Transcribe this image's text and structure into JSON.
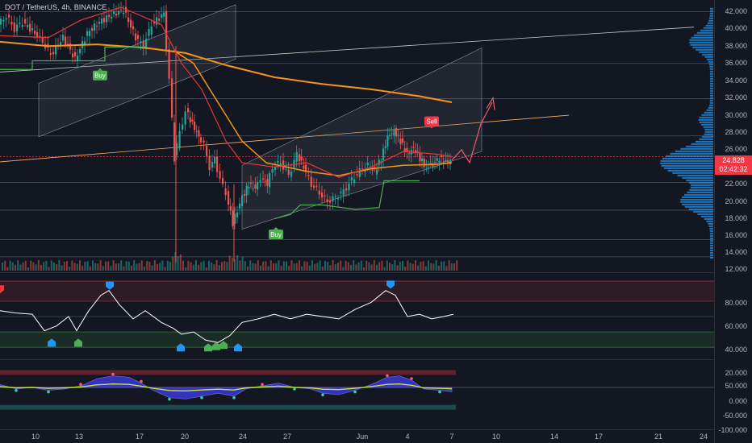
{
  "header": {
    "title": "DOT / TetherUS, 4h, BINANCE"
  },
  "colors": {
    "background": "#131722",
    "up": "#26a69a",
    "down": "#ef5350",
    "ma_orange": "#f7931a",
    "ma_red": "#e53935",
    "buy": "#4caf50",
    "sell": "#f23645",
    "volume_profile": "#2196f3",
    "rsi_line": "#ffffff",
    "channel": "#5d606b"
  },
  "price_axis": {
    "labels": [
      "42.000",
      "40.000",
      "38.000",
      "36.000",
      "34.000",
      "32.000",
      "30.000",
      "28.000",
      "26.000",
      "22.000",
      "20.000",
      "18.000",
      "16.000",
      "14.000",
      "12.000"
    ]
  },
  "current_price": {
    "value": "24.828",
    "countdown": "02:42:32"
  },
  "rsi_axis": {
    "labels": [
      "80.000",
      "60.000",
      "40.000",
      "20.000"
    ]
  },
  "osc_axis": {
    "labels": [
      "50.000",
      "0.000",
      "-50.000",
      "-100.000"
    ]
  },
  "time_axis": {
    "labels": [
      "10",
      "13",
      "17",
      "20",
      "24",
      "27",
      "Jun",
      "4",
      "7",
      "10",
      "14",
      "17",
      "21",
      "24"
    ]
  },
  "signals": {
    "buy_label": "Buy",
    "sell_label": "Sell"
  },
  "chart_data": {
    "type": "candlestick",
    "symbol": "DOT / TetherUS",
    "interval": "4h",
    "exchange": "BINANCE",
    "ylim": [
      12,
      43
    ],
    "last_price": 24.828,
    "x_ticks": [
      "10",
      "13",
      "17",
      "20",
      "24",
      "27",
      "Jun",
      "4",
      "7",
      "10",
      "14",
      "17",
      "21",
      "24"
    ],
    "price_path": [
      [
        0,
        40.5
      ],
      [
        10,
        41.5
      ],
      [
        20,
        40.0
      ],
      [
        30,
        40.8
      ],
      [
        45,
        39.5
      ],
      [
        55,
        38.5
      ],
      [
        65,
        37.0
      ],
      [
        80,
        39.0
      ],
      [
        95,
        36.5
      ],
      [
        110,
        39.5
      ],
      [
        125,
        40.8
      ],
      [
        140,
        41.6
      ],
      [
        155,
        42.2
      ],
      [
        170,
        39.0
      ],
      [
        180,
        38.0
      ],
      [
        190,
        40.5
      ],
      [
        205,
        41.8
      ],
      [
        212,
        34.0
      ],
      [
        218,
        25.0
      ],
      [
        225,
        28.0
      ],
      [
        232,
        30.5
      ],
      [
        240,
        29.0
      ],
      [
        248,
        27.5
      ],
      [
        255,
        26.5
      ],
      [
        262,
        24.0
      ],
      [
        268,
        25.0
      ],
      [
        275,
        22.5
      ],
      [
        282,
        21.0
      ],
      [
        290,
        17.5
      ],
      [
        296,
        19.0
      ],
      [
        302,
        20.5
      ],
      [
        310,
        22.0
      ],
      [
        318,
        21.5
      ],
      [
        325,
        22.8
      ],
      [
        333,
        22.0
      ],
      [
        340,
        24.0
      ],
      [
        350,
        24.5
      ],
      [
        360,
        23.0
      ],
      [
        370,
        25.5
      ],
      [
        378,
        24.0
      ],
      [
        388,
        22.0
      ],
      [
        398,
        21.0
      ],
      [
        408,
        20.0
      ],
      [
        418,
        20.5
      ],
      [
        428,
        21.2
      ],
      [
        438,
        22.5
      ],
      [
        448,
        23.5
      ],
      [
        458,
        24.2
      ],
      [
        466,
        23.5
      ],
      [
        474,
        25.0
      ],
      [
        482,
        27.5
      ],
      [
        490,
        28.2
      ],
      [
        498,
        27.0
      ],
      [
        506,
        25.5
      ],
      [
        514,
        26.2
      ],
      [
        522,
        25.0
      ],
      [
        530,
        24.0
      ],
      [
        538,
        24.4
      ],
      [
        546,
        25.0
      ],
      [
        554,
        24.5
      ],
      [
        560,
        24.8
      ]
    ],
    "ma_slow_path": [
      [
        0,
        38.5
      ],
      [
        60,
        38.0
      ],
      [
        120,
        38.2
      ],
      [
        180,
        37.8
      ],
      [
        230,
        37.2
      ],
      [
        280,
        35.8
      ],
      [
        340,
        34.4
      ],
      [
        400,
        33.6
      ],
      [
        460,
        33.0
      ],
      [
        520,
        32.2
      ],
      [
        560,
        31.5
      ]
    ],
    "ma_mid_path": [
      [
        215,
        37.5
      ],
      [
        240,
        36.0
      ],
      [
        260,
        33.0
      ],
      [
        280,
        30.0
      ],
      [
        300,
        27.0
      ],
      [
        330,
        24.5
      ],
      [
        380,
        23.5
      ],
      [
        420,
        23.0
      ],
      [
        460,
        23.8
      ],
      [
        500,
        24.2
      ],
      [
        540,
        24.3
      ],
      [
        560,
        24.5
      ]
    ],
    "projection_path": [
      [
        560,
        24.8
      ],
      [
        572,
        26.0
      ],
      [
        582,
        24.5
      ],
      [
        596,
        29.0
      ],
      [
        610,
        31.5
      ]
    ],
    "signals": [
      {
        "type": "Buy",
        "x_time": "14",
        "price": 35.5
      },
      {
        "type": "Buy",
        "x_time": "26",
        "price": 16.2
      },
      {
        "type": "Sell",
        "x_time": "4",
        "price": 28.6
      }
    ],
    "rsi": {
      "overbought": 75,
      "oversold": 35,
      "path": [
        [
          0,
          55
        ],
        [
          20,
          53
        ],
        [
          40,
          52
        ],
        [
          55,
          38
        ],
        [
          70,
          42
        ],
        [
          85,
          50
        ],
        [
          95,
          38
        ],
        [
          110,
          55
        ],
        [
          125,
          68
        ],
        [
          135,
          72
        ],
        [
          148,
          60
        ],
        [
          165,
          48
        ],
        [
          180,
          55
        ],
        [
          200,
          45
        ],
        [
          215,
          40
        ],
        [
          225,
          35
        ],
        [
          240,
          37
        ],
        [
          255,
          30
        ],
        [
          270,
          28
        ],
        [
          285,
          34
        ],
        [
          300,
          45
        ],
        [
          320,
          48
        ],
        [
          340,
          52
        ],
        [
          360,
          48
        ],
        [
          380,
          52
        ],
        [
          400,
          50
        ],
        [
          420,
          48
        ],
        [
          440,
          56
        ],
        [
          460,
          62
        ],
        [
          478,
          72
        ],
        [
          490,
          68
        ],
        [
          505,
          50
        ],
        [
          520,
          52
        ],
        [
          535,
          48
        ],
        [
          550,
          50
        ],
        [
          562,
          52
        ]
      ]
    },
    "oscillator": {
      "range": [
        -100,
        60
      ],
      "path": [
        [
          0,
          10
        ],
        [
          20,
          -5
        ],
        [
          40,
          0
        ],
        [
          60,
          -10
        ],
        [
          80,
          -5
        ],
        [
          100,
          5
        ],
        [
          120,
          30
        ],
        [
          140,
          40
        ],
        [
          160,
          35
        ],
        [
          175,
          15
        ],
        [
          190,
          -10
        ],
        [
          210,
          -35
        ],
        [
          230,
          -40
        ],
        [
          250,
          -30
        ],
        [
          270,
          -20
        ],
        [
          290,
          -30
        ],
        [
          305,
          -5
        ],
        [
          325,
          5
        ],
        [
          345,
          15
        ],
        [
          365,
          0
        ],
        [
          385,
          -5
        ],
        [
          400,
          -20
        ],
        [
          420,
          -25
        ],
        [
          440,
          -10
        ],
        [
          460,
          10
        ],
        [
          480,
          35
        ],
        [
          495,
          40
        ],
        [
          510,
          25
        ],
        [
          525,
          -5
        ],
        [
          545,
          -10
        ],
        [
          560,
          -15
        ]
      ]
    }
  }
}
